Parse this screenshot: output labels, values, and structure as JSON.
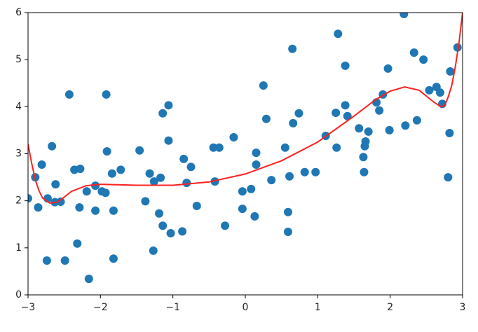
{
  "chart_data": {
    "type": "scatter",
    "xlim": [
      -3,
      3
    ],
    "ylim": [
      0,
      6
    ],
    "xticks": [
      {
        "value": -3,
        "label": "−3"
      },
      {
        "value": -2,
        "label": "−2"
      },
      {
        "value": -1,
        "label": "−1"
      },
      0,
      1,
      2,
      3
    ],
    "yticks": [
      0,
      1,
      2,
      3,
      4,
      5,
      6
    ],
    "series": [
      {
        "type": "scatter",
        "color": "#1f77b4",
        "x": [
          -3.0,
          -2.9,
          -2.86,
          -2.81,
          -2.74,
          -2.73,
          -2.67,
          -2.63,
          -2.62,
          -2.55,
          -2.49,
          -2.43,
          -2.36,
          -2.32,
          -2.29,
          -2.28,
          -2.19,
          -2.16,
          -2.07,
          -2.07,
          -1.98,
          -1.93,
          -1.92,
          -1.91,
          -1.84,
          -1.82,
          -1.82,
          -1.72,
          -1.46,
          -1.38,
          -1.32,
          -1.27,
          -1.26,
          -1.19,
          -1.17,
          -1.14,
          -1.14,
          -1.06,
          -1.06,
          -1.03,
          -0.87,
          -0.85,
          -0.81,
          -0.75,
          -0.67,
          -0.44,
          -0.42,
          -0.36,
          -0.28,
          -0.16,
          -0.04,
          -0.04,
          0.08,
          0.13,
          0.15,
          0.15,
          0.25,
          0.29,
          0.36,
          0.55,
          0.59,
          0.59,
          0.61,
          0.65,
          0.66,
          0.74,
          0.82,
          0.97,
          1.11,
          1.25,
          1.26,
          1.28,
          1.38,
          1.38,
          1.41,
          1.57,
          1.63,
          1.64,
          1.65,
          1.66,
          1.7,
          1.81,
          1.85,
          1.9,
          1.97,
          1.99,
          2.19,
          2.21,
          2.33,
          2.37,
          2.46,
          2.54,
          2.64,
          2.69,
          2.72,
          2.8,
          2.82,
          2.83,
          2.93
        ],
        "values": [
          2.05,
          2.5,
          1.86,
          2.77,
          0.73,
          2.05,
          3.16,
          1.97,
          2.35,
          1.98,
          0.73,
          4.26,
          2.66,
          1.09,
          1.86,
          2.68,
          2.2,
          0.34,
          2.32,
          1.79,
          2.2,
          2.17,
          4.26,
          3.05,
          2.58,
          1.79,
          0.77,
          2.66,
          3.07,
          1.99,
          2.58,
          0.94,
          2.41,
          1.73,
          2.49,
          3.86,
          1.47,
          4.03,
          3.28,
          1.31,
          1.35,
          2.89,
          2.38,
          2.72,
          1.89,
          3.13,
          2.41,
          3.13,
          1.47,
          3.35,
          2.2,
          1.83,
          2.25,
          1.67,
          3.02,
          2.77,
          4.45,
          3.74,
          2.44,
          3.13,
          1.76,
          1.34,
          2.52,
          5.23,
          3.65,
          3.86,
          2.61,
          2.61,
          3.38,
          3.87,
          3.13,
          5.55,
          4.03,
          4.87,
          3.8,
          3.54,
          2.93,
          2.61,
          3.16,
          3.26,
          3.47,
          4.09,
          3.92,
          4.26,
          4.81,
          3.5,
          5.97,
          3.6,
          5.15,
          3.71,
          5.0,
          4.35,
          4.42,
          4.3,
          4.06,
          2.5,
          3.44,
          4.75,
          5.26
        ]
      },
      {
        "type": "line",
        "color": "#ff2020",
        "x": [
          -3.0,
          -2.95,
          -2.9,
          -2.85,
          -2.8,
          -2.7,
          -2.6,
          -2.5,
          -2.4,
          -2.2,
          -2.0,
          -1.5,
          -1.0,
          -0.5,
          0.0,
          0.5,
          1.0,
          1.5,
          1.8,
          2.0,
          2.2,
          2.4,
          2.6,
          2.7,
          2.75,
          2.8,
          2.85,
          2.9,
          2.95,
          3.0
        ],
        "values": [
          3.2,
          2.8,
          2.45,
          2.22,
          2.06,
          1.95,
          1.97,
          2.08,
          2.2,
          2.32,
          2.35,
          2.33,
          2.33,
          2.4,
          2.57,
          2.85,
          3.25,
          3.8,
          4.15,
          4.33,
          4.42,
          4.35,
          4.1,
          4.0,
          4.02,
          4.2,
          4.45,
          4.85,
          5.35,
          6.0
        ]
      }
    ]
  }
}
